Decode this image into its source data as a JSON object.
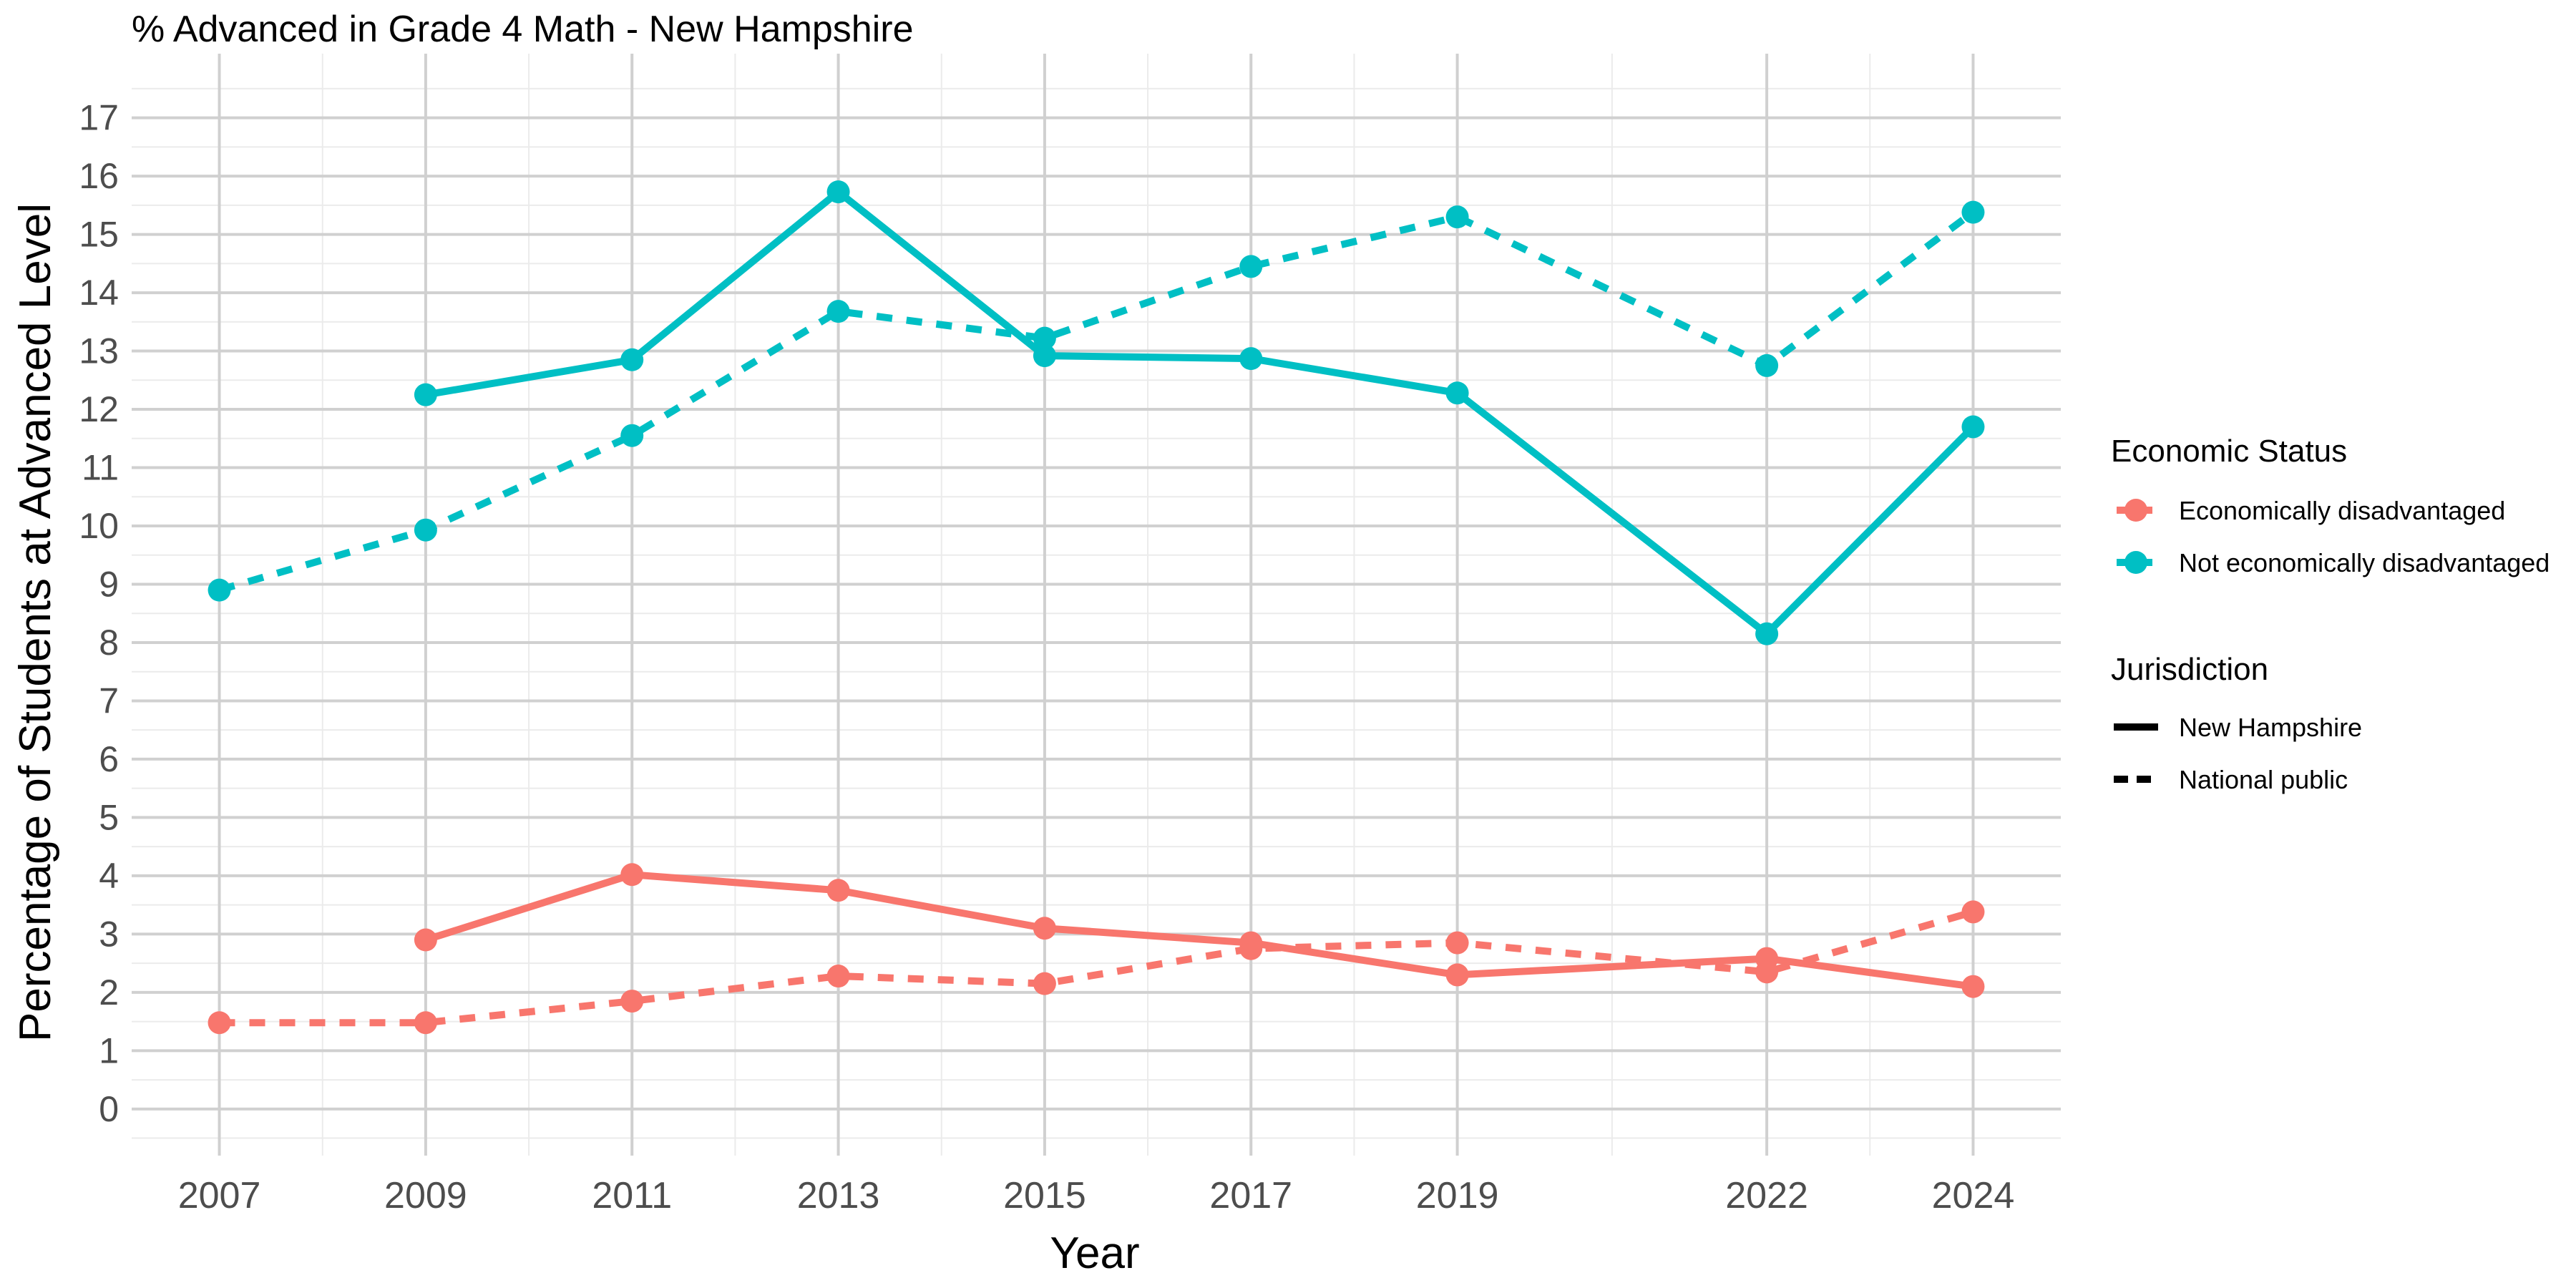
{
  "chart_data": {
    "type": "line",
    "title": "% Advanced in Grade 4 Math - New Hampshire",
    "xlabel": "Year",
    "ylabel": "Percentage of Students at Advanced Level",
    "x_ticks": [
      2007,
      2009,
      2011,
      2013,
      2015,
      2017,
      2019,
      2022,
      2024
    ],
    "y_ticks": [
      0,
      1,
      2,
      3,
      4,
      5,
      6,
      7,
      8,
      9,
      10,
      11,
      12,
      13,
      14,
      15,
      16,
      17
    ],
    "xlim": [
      2006.15,
      2024.85
    ],
    "ylim": [
      -0.8,
      18.1
    ],
    "grid": true,
    "legend_position": "right",
    "colors": {
      "Economically disadvantaged": "#F8766D",
      "Not economically disadvantaged": "#00BFC4",
      "grid_major": "#d0d0d0",
      "grid_minor": "#ebebeb"
    },
    "legends": [
      {
        "title": "Economic Status",
        "entries": [
          {
            "label": "Economically disadvantaged",
            "color": "#F8766D"
          },
          {
            "label": "Not economically disadvantaged",
            "color": "#00BFC4"
          }
        ]
      },
      {
        "title": "Jurisdiction",
        "entries": [
          {
            "label": "New Hampshire",
            "linetype": "solid"
          },
          {
            "label": "National public",
            "linetype": "dashed"
          }
        ]
      }
    ],
    "series": [
      {
        "economic_status": "Not economically disadvantaged",
        "jurisdiction": "New Hampshire",
        "color": "#00BFC4",
        "linetype": "solid",
        "points": [
          [
            2009,
            12.25
          ],
          [
            2011,
            12.85
          ],
          [
            2013,
            15.73
          ],
          [
            2015,
            12.92
          ],
          [
            2017,
            12.87
          ],
          [
            2019,
            12.28
          ],
          [
            2022,
            8.15
          ],
          [
            2024,
            11.7
          ]
        ]
      },
      {
        "economic_status": "Not economically disadvantaged",
        "jurisdiction": "National public",
        "color": "#00BFC4",
        "linetype": "dashed",
        "points": [
          [
            2007,
            8.9
          ],
          [
            2009,
            9.93
          ],
          [
            2011,
            11.55
          ],
          [
            2013,
            13.68
          ],
          [
            2015,
            13.22
          ],
          [
            2017,
            14.45
          ],
          [
            2019,
            15.3
          ],
          [
            2022,
            12.75
          ],
          [
            2024,
            15.38
          ]
        ]
      },
      {
        "economic_status": "Economically disadvantaged",
        "jurisdiction": "New Hampshire",
        "color": "#F8766D",
        "linetype": "solid",
        "points": [
          [
            2009,
            2.9
          ],
          [
            2011,
            4.02
          ],
          [
            2013,
            3.75
          ],
          [
            2015,
            3.1
          ],
          [
            2017,
            2.85
          ],
          [
            2019,
            2.3
          ],
          [
            2022,
            2.58
          ],
          [
            2024,
            2.1
          ]
        ]
      },
      {
        "economic_status": "Economically disadvantaged",
        "jurisdiction": "National public",
        "color": "#F8766D",
        "linetype": "dashed",
        "points": [
          [
            2007,
            1.48
          ],
          [
            2009,
            1.48
          ],
          [
            2011,
            1.85
          ],
          [
            2013,
            2.28
          ],
          [
            2015,
            2.15
          ],
          [
            2017,
            2.75
          ],
          [
            2019,
            2.85
          ],
          [
            2022,
            2.35
          ],
          [
            2024,
            3.38
          ]
        ]
      }
    ]
  }
}
